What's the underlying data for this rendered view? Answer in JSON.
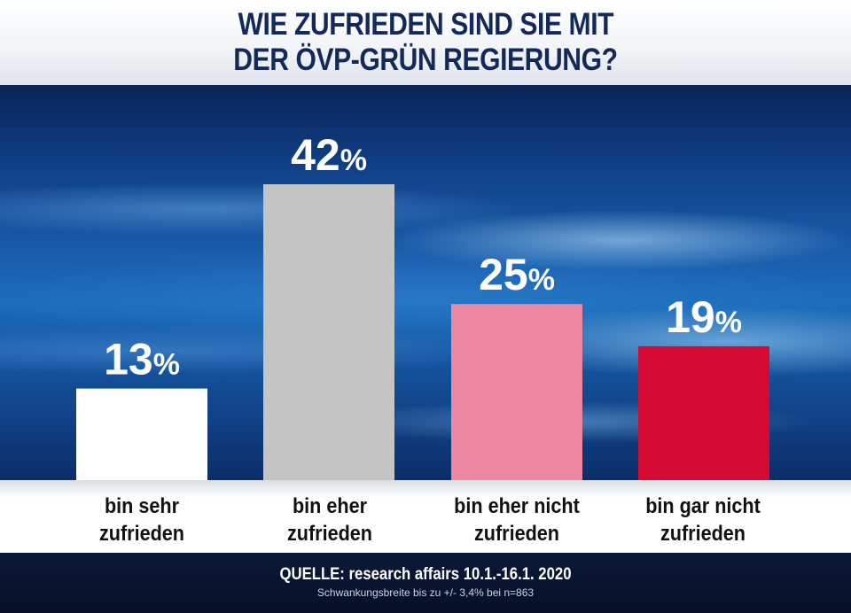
{
  "title": {
    "line1": "WIE ZUFRIEDEN SIND SIE MIT",
    "line2": "DER ÖVP-GRÜN REGIERUNG?"
  },
  "chart_data": {
    "type": "bar",
    "categories": [
      "bin sehr zufrieden",
      "bin eher zufrieden",
      "bin eher nicht zufrieden",
      "bin gar nicht zufrieden"
    ],
    "category_lines": [
      [
        "bin sehr",
        "zufrieden"
      ],
      [
        "bin eher",
        "zufrieden"
      ],
      [
        "bin eher nicht",
        "zufrieden"
      ],
      [
        "bin gar nicht",
        "zufrieden"
      ]
    ],
    "values": [
      13,
      42,
      25,
      19
    ],
    "unit": "%",
    "colors": [
      "#ffffff",
      "#c4c4c4",
      "#eb87a0",
      "#d40a33"
    ],
    "ylim": [
      0,
      42
    ],
    "title": "WIE ZUFRIEDEN SIND SIE MIT DER ÖVP-GRÜN REGIERUNG?",
    "xlabel": "",
    "ylabel": "",
    "grid": false
  },
  "footer": {
    "source": "QUELLE: research affairs 10.1.-16.1. 2020",
    "note": "Schwankungsbreite bis zu +/- 3,4% bei n=863"
  },
  "colors": {
    "title_text": "#12295a",
    "background": "#1b6cbb"
  }
}
